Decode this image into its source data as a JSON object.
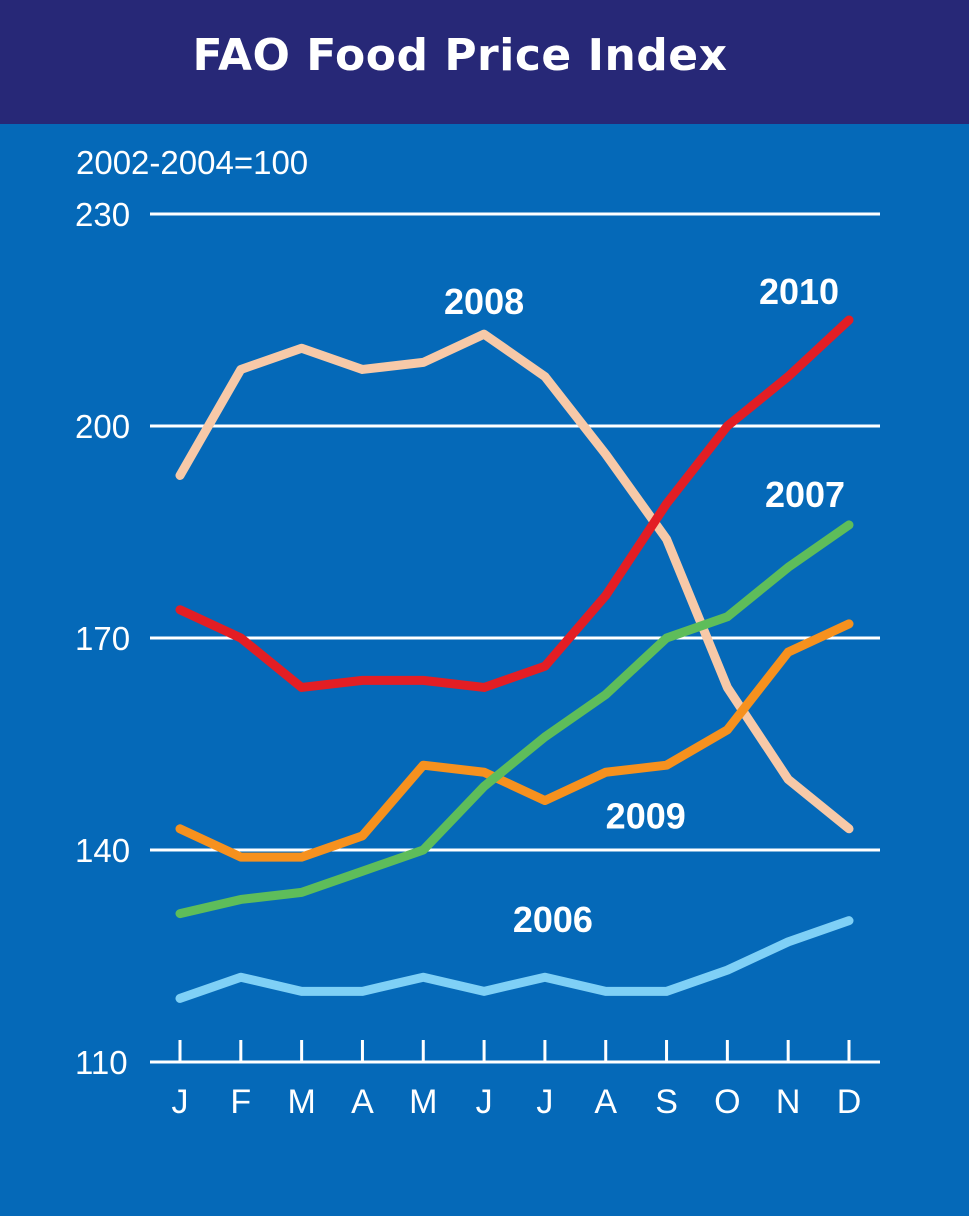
{
  "title": "FAO Food Price Index",
  "chart_data": {
    "type": "line",
    "title": "FAO Food Price Index",
    "ylabel": "2002-2004=100",
    "xlabel": "",
    "categories": [
      "J",
      "F",
      "M",
      "A",
      "M",
      "J",
      "J",
      "A",
      "S",
      "O",
      "N",
      "D"
    ],
    "ylim": [
      110,
      230
    ],
    "yticks": [
      110,
      140,
      170,
      200,
      230
    ],
    "grid": true,
    "background": "#0569b8",
    "header_color": "#272877",
    "series": [
      {
        "name": "2006",
        "color": "#7fd0f6",
        "values": [
          119,
          122,
          120,
          120,
          122,
          120,
          122,
          120,
          120,
          123,
          127,
          130
        ]
      },
      {
        "name": "2007",
        "color": "#5ebd5a",
        "values": [
          131,
          133,
          134,
          137,
          140,
          149,
          156,
          162,
          170,
          173,
          180,
          186
        ]
      },
      {
        "name": "2008",
        "color": "#f7c9a8",
        "values": [
          193,
          208,
          211,
          208,
          209,
          213,
          207,
          196,
          184,
          163,
          150,
          143
        ]
      },
      {
        "name": "2009",
        "color": "#f6911e",
        "values": [
          143,
          139,
          139,
          142,
          152,
          151,
          147,
          151,
          152,
          157,
          168,
          172
        ]
      },
      {
        "name": "2010",
        "color": "#e31e24",
        "values": [
          174,
          170,
          163,
          164,
          164,
          163,
          166,
          176,
          189,
          200,
          207,
          215
        ]
      }
    ]
  }
}
